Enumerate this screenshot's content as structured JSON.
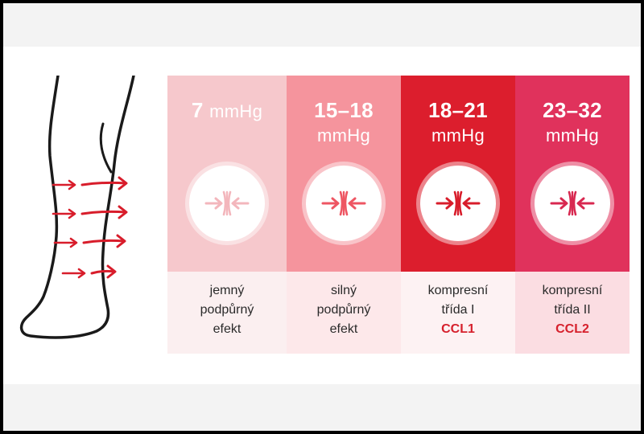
{
  "columns": [
    {
      "pressure_value": "7",
      "pressure_unit": "mmHg",
      "pressure_inline": true,
      "description_lines": [
        "jemný",
        "podpůrný",
        "efekt"
      ],
      "class_label": "",
      "panel_color": "#f6c8cc",
      "label_bg": "#fbeff0",
      "arrow_color": "#f3b6bc"
    },
    {
      "pressure_value": "15–18",
      "pressure_unit": "mmHg",
      "pressure_inline": false,
      "description_lines": [
        "silný",
        "podpůrný",
        "efekt"
      ],
      "class_label": "",
      "panel_color": "#f5949d",
      "label_bg": "#fde8ea",
      "arrow_color": "#ee5663"
    },
    {
      "pressure_value": "18–21",
      "pressure_unit": "mmHg",
      "pressure_inline": false,
      "description_lines": [
        "kompresní",
        "třída I"
      ],
      "class_label": "CCL1",
      "panel_color": "#dc1e2d",
      "label_bg": "#fdf2f3",
      "arrow_color": "#d81d2b"
    },
    {
      "pressure_value": "23–32",
      "pressure_unit": "mmHg",
      "pressure_inline": false,
      "description_lines": [
        "kompresní",
        "třída II"
      ],
      "class_label": "CCL2",
      "panel_color": "#e0325c",
      "label_bg": "#fbdde2",
      "arrow_color": "#d82850"
    }
  ],
  "leg_arrow_color": "#d81d2b",
  "icon_name": "compression-arrows-icon"
}
